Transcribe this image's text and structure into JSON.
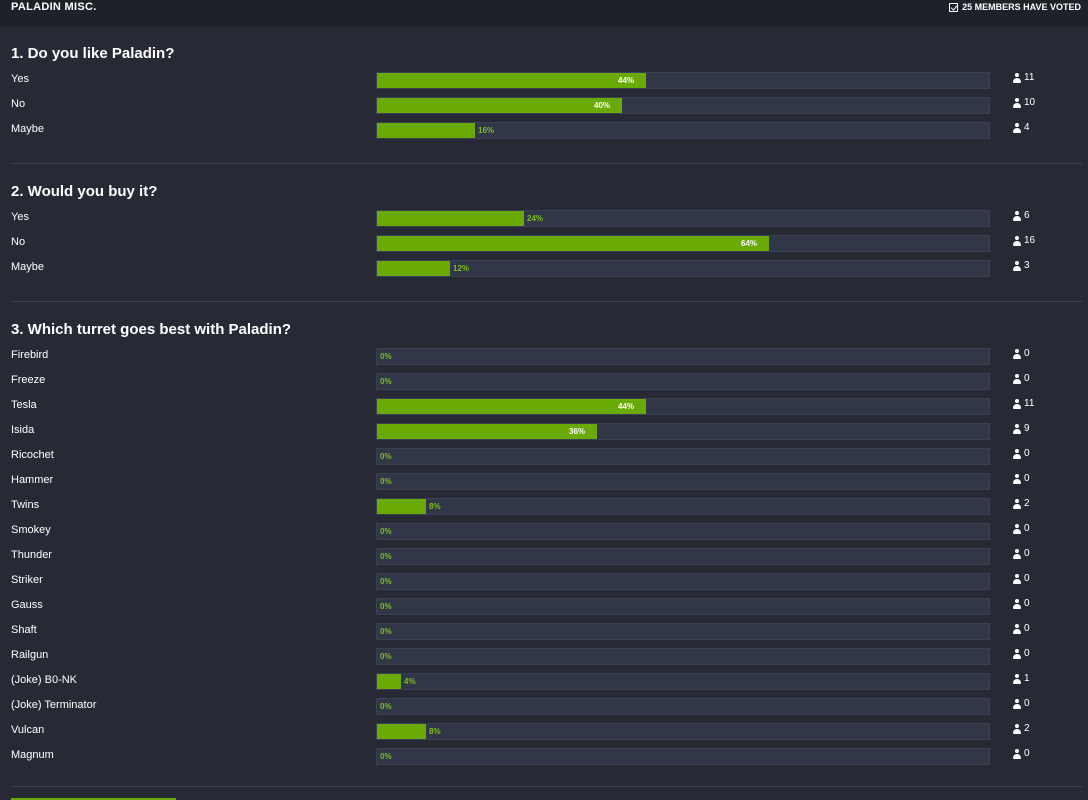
{
  "header": {
    "title": "PALADIN MISC.",
    "votes_label": "25 MEMBERS HAVE VOTED"
  },
  "questions": [
    {
      "title": "1. Do you like Paladin?",
      "options": [
        {
          "label": "Yes",
          "percent": 44,
          "percent_label": "44%",
          "count": "11"
        },
        {
          "label": "No",
          "percent": 40,
          "percent_label": "40%",
          "count": "10"
        },
        {
          "label": "Maybe",
          "percent": 16,
          "percent_label": "16%",
          "count": "4"
        }
      ]
    },
    {
      "title": "2. Would you buy it?",
      "options": [
        {
          "label": "Yes",
          "percent": 24,
          "percent_label": "24%",
          "count": "6"
        },
        {
          "label": "No",
          "percent": 64,
          "percent_label": "64%",
          "count": "16"
        },
        {
          "label": "Maybe",
          "percent": 12,
          "percent_label": "12%",
          "count": "3"
        }
      ]
    },
    {
      "title": "3. Which turret goes best with Paladin?",
      "options": [
        {
          "label": "Firebird",
          "percent": 0,
          "percent_label": "0%",
          "count": "0"
        },
        {
          "label": "Freeze",
          "percent": 0,
          "percent_label": "0%",
          "count": "0"
        },
        {
          "label": "Tesla",
          "percent": 44,
          "percent_label": "44%",
          "count": "11"
        },
        {
          "label": "Isida",
          "percent": 36,
          "percent_label": "36%",
          "count": "9"
        },
        {
          "label": "Ricochet",
          "percent": 0,
          "percent_label": "0%",
          "count": "0"
        },
        {
          "label": "Hammer",
          "percent": 0,
          "percent_label": "0%",
          "count": "0"
        },
        {
          "label": "Twins",
          "percent": 8,
          "percent_label": "8%",
          "count": "2"
        },
        {
          "label": "Smokey",
          "percent": 0,
          "percent_label": "0%",
          "count": "0"
        },
        {
          "label": "Thunder",
          "percent": 0,
          "percent_label": "0%",
          "count": "0"
        },
        {
          "label": "Striker",
          "percent": 0,
          "percent_label": "0%",
          "count": "0"
        },
        {
          "label": "Gauss",
          "percent": 0,
          "percent_label": "0%",
          "count": "0"
        },
        {
          "label": "Shaft",
          "percent": 0,
          "percent_label": "0%",
          "count": "0"
        },
        {
          "label": "Railgun",
          "percent": 0,
          "percent_label": "0%",
          "count": "0"
        },
        {
          "label": "(Joke) B0-NK",
          "percent": 4,
          "percent_label": "4%",
          "count": "1"
        },
        {
          "label": "(Joke) Terminator",
          "percent": 0,
          "percent_label": "0%",
          "count": "0"
        },
        {
          "label": "Vulcan",
          "percent": 8,
          "percent_label": "8%",
          "count": "2"
        },
        {
          "label": "Magnum",
          "percent": 0,
          "percent_label": "0%",
          "count": "0"
        }
      ]
    }
  ],
  "colors": {
    "background": "#272a35",
    "header": "#1f2129",
    "bar_fill": "#6aaa07",
    "bar_track": "#323748",
    "percent_outside": "#7cbf1e"
  },
  "icons": {
    "voted": "check-square-icon",
    "voter_count": "user-icon"
  }
}
